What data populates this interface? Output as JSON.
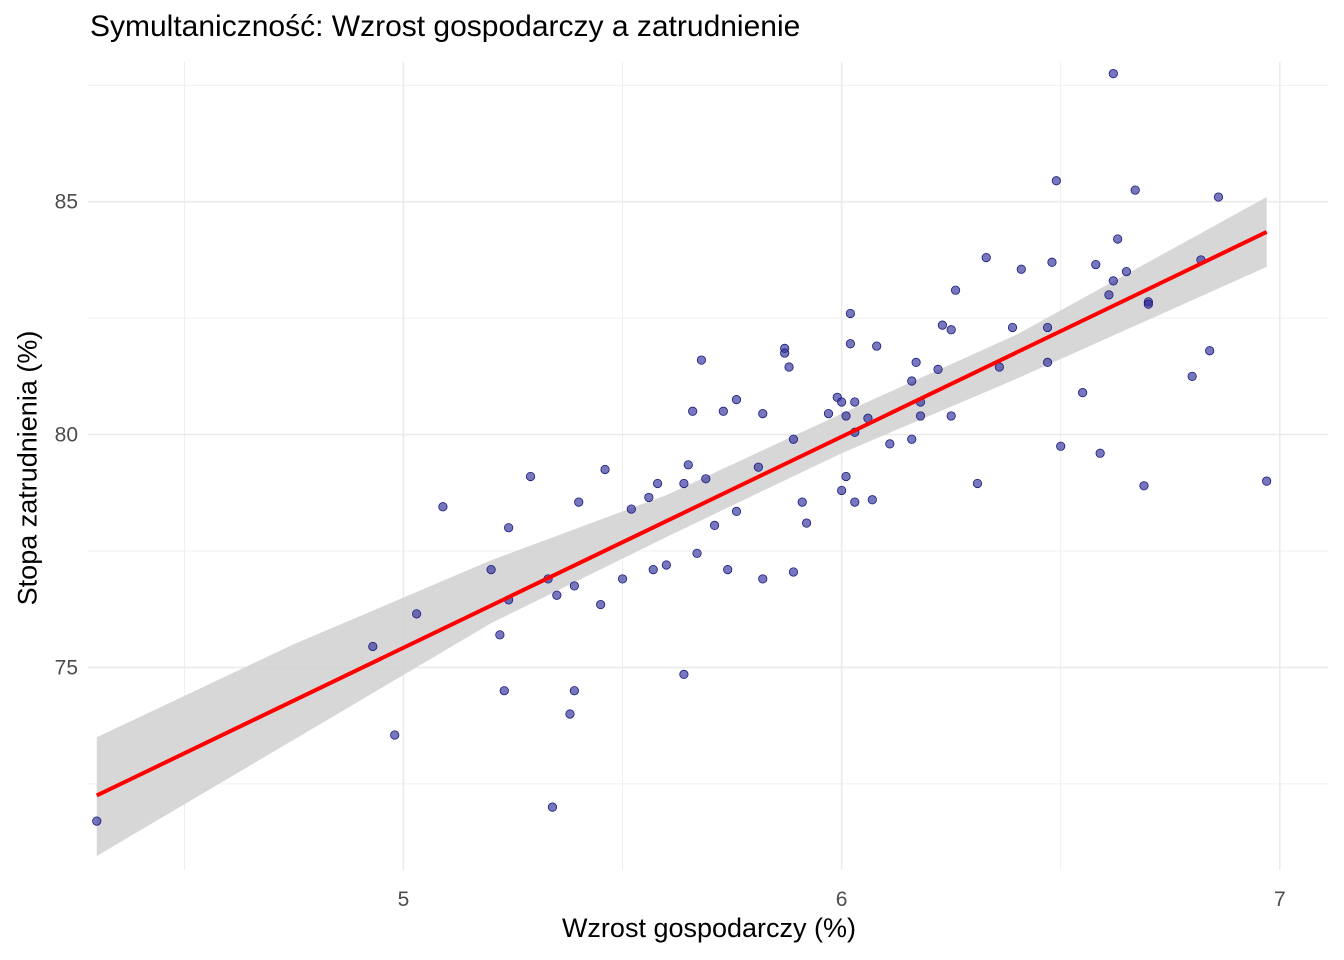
{
  "chart_data": {
    "type": "scatter",
    "title": "Symultaniczność: Wzrost gospodarczy a zatrudnienie",
    "xlabel": "Wzrost gospodarczy (%)",
    "ylabel": "Stopa zatrudnienia (%)",
    "xlim": [
      4.28,
      7.11
    ],
    "ylim": [
      70.65,
      88.0
    ],
    "xticks": [
      5,
      6,
      7
    ],
    "yticks": [
      75,
      80,
      85
    ],
    "grid": true,
    "point_color": "#2e2e99",
    "fit_line_color": "#ff0000",
    "ci_band_color": "#d3d3d3",
    "fit_line": {
      "x": [
        4.3,
        6.97
      ],
      "y": [
        72.25,
        84.35
      ]
    },
    "confidence_band": {
      "x": [
        4.3,
        4.75,
        5.2,
        5.6,
        6.0,
        6.4,
        6.97
      ],
      "lower": [
        70.95,
        73.45,
        75.95,
        77.8,
        79.6,
        81.2,
        83.6
      ],
      "upper": [
        73.5,
        75.5,
        77.3,
        78.7,
        80.45,
        82.15,
        85.1
      ]
    },
    "points": [
      {
        "x": 4.3,
        "y": 71.7
      },
      {
        "x": 4.93,
        "y": 75.45
      },
      {
        "x": 4.98,
        "y": 73.55
      },
      {
        "x": 5.03,
        "y": 76.15
      },
      {
        "x": 5.09,
        "y": 78.45
      },
      {
        "x": 5.2,
        "y": 77.1
      },
      {
        "x": 5.22,
        "y": 75.7
      },
      {
        "x": 5.23,
        "y": 74.5
      },
      {
        "x": 5.24,
        "y": 78.0
      },
      {
        "x": 5.24,
        "y": 76.45
      },
      {
        "x": 5.29,
        "y": 79.1
      },
      {
        "x": 5.33,
        "y": 76.9
      },
      {
        "x": 5.34,
        "y": 72.0
      },
      {
        "x": 5.35,
        "y": 76.55
      },
      {
        "x": 5.38,
        "y": 74.0
      },
      {
        "x": 5.39,
        "y": 74.5
      },
      {
        "x": 5.39,
        "y": 76.75
      },
      {
        "x": 5.4,
        "y": 78.55
      },
      {
        "x": 5.45,
        "y": 76.35
      },
      {
        "x": 5.46,
        "y": 79.25
      },
      {
        "x": 5.5,
        "y": 76.9
      },
      {
        "x": 5.52,
        "y": 78.4
      },
      {
        "x": 5.56,
        "y": 78.65
      },
      {
        "x": 5.58,
        "y": 78.95
      },
      {
        "x": 5.57,
        "y": 77.1
      },
      {
        "x": 5.6,
        "y": 77.2
      },
      {
        "x": 5.64,
        "y": 78.95
      },
      {
        "x": 5.65,
        "y": 79.35
      },
      {
        "x": 5.64,
        "y": 74.85
      },
      {
        "x": 5.66,
        "y": 80.5
      },
      {
        "x": 5.67,
        "y": 77.45
      },
      {
        "x": 5.68,
        "y": 81.6
      },
      {
        "x": 5.69,
        "y": 79.05
      },
      {
        "x": 5.71,
        "y": 78.05
      },
      {
        "x": 5.73,
        "y": 80.5
      },
      {
        "x": 5.74,
        "y": 77.1
      },
      {
        "x": 5.76,
        "y": 80.75
      },
      {
        "x": 5.76,
        "y": 78.35
      },
      {
        "x": 5.81,
        "y": 79.3
      },
      {
        "x": 5.82,
        "y": 80.45
      },
      {
        "x": 5.82,
        "y": 76.9
      },
      {
        "x": 5.87,
        "y": 81.85
      },
      {
        "x": 5.87,
        "y": 81.75
      },
      {
        "x": 5.88,
        "y": 81.45
      },
      {
        "x": 5.89,
        "y": 79.9
      },
      {
        "x": 5.89,
        "y": 77.05
      },
      {
        "x": 5.91,
        "y": 78.55
      },
      {
        "x": 5.92,
        "y": 78.1
      },
      {
        "x": 5.97,
        "y": 80.45
      },
      {
        "x": 5.99,
        "y": 80.8
      },
      {
        "x": 6.0,
        "y": 80.7
      },
      {
        "x": 6.0,
        "y": 78.8
      },
      {
        "x": 6.01,
        "y": 79.1
      },
      {
        "x": 6.01,
        "y": 80.4
      },
      {
        "x": 6.02,
        "y": 82.6
      },
      {
        "x": 6.02,
        "y": 81.95
      },
      {
        "x": 6.03,
        "y": 80.7
      },
      {
        "x": 6.03,
        "y": 80.05
      },
      {
        "x": 6.03,
        "y": 78.55
      },
      {
        "x": 6.06,
        "y": 80.35
      },
      {
        "x": 6.07,
        "y": 78.6
      },
      {
        "x": 6.08,
        "y": 81.9
      },
      {
        "x": 6.11,
        "y": 79.8
      },
      {
        "x": 6.16,
        "y": 79.9
      },
      {
        "x": 6.16,
        "y": 81.15
      },
      {
        "x": 6.17,
        "y": 81.55
      },
      {
        "x": 6.18,
        "y": 80.4
      },
      {
        "x": 6.18,
        "y": 80.7
      },
      {
        "x": 6.22,
        "y": 81.4
      },
      {
        "x": 6.23,
        "y": 82.35
      },
      {
        "x": 6.25,
        "y": 82.25
      },
      {
        "x": 6.25,
        "y": 80.4
      },
      {
        "x": 6.26,
        "y": 83.1
      },
      {
        "x": 6.31,
        "y": 78.95
      },
      {
        "x": 6.33,
        "y": 83.8
      },
      {
        "x": 6.36,
        "y": 81.45
      },
      {
        "x": 6.39,
        "y": 82.3
      },
      {
        "x": 6.41,
        "y": 83.55
      },
      {
        "x": 6.47,
        "y": 81.55
      },
      {
        "x": 6.47,
        "y": 82.3
      },
      {
        "x": 6.48,
        "y": 83.7
      },
      {
        "x": 6.49,
        "y": 85.45
      },
      {
        "x": 6.5,
        "y": 79.75
      },
      {
        "x": 6.55,
        "y": 80.9
      },
      {
        "x": 6.58,
        "y": 83.65
      },
      {
        "x": 6.59,
        "y": 79.6
      },
      {
        "x": 6.61,
        "y": 83.0
      },
      {
        "x": 6.62,
        "y": 83.3
      },
      {
        "x": 6.62,
        "y": 87.75
      },
      {
        "x": 6.63,
        "y": 84.2
      },
      {
        "x": 6.65,
        "y": 83.5
      },
      {
        "x": 6.67,
        "y": 85.25
      },
      {
        "x": 6.69,
        "y": 78.9
      },
      {
        "x": 6.7,
        "y": 82.85
      },
      {
        "x": 6.7,
        "y": 82.8
      },
      {
        "x": 6.8,
        "y": 81.25
      },
      {
        "x": 6.82,
        "y": 83.75
      },
      {
        "x": 6.84,
        "y": 81.8
      },
      {
        "x": 6.86,
        "y": 85.1
      },
      {
        "x": 6.97,
        "y": 79.0
      }
    ]
  }
}
